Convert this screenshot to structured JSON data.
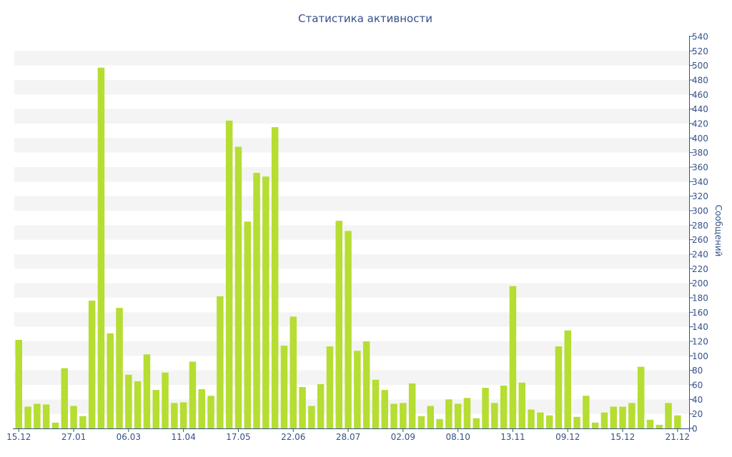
{
  "chart_data": {
    "type": "bar",
    "title": "Статистика активности",
    "xlabel": "",
    "ylabel": "Сообщений",
    "ylim": [
      0,
      540
    ],
    "y_ticks": [
      0,
      20,
      40,
      60,
      80,
      100,
      120,
      140,
      160,
      180,
      200,
      220,
      240,
      260,
      280,
      300,
      320,
      340,
      360,
      380,
      400,
      420,
      440,
      460,
      480,
      500,
      520,
      540
    ],
    "x_tick_labels": [
      "15.12",
      "27.01",
      "06.03",
      "11.04",
      "17.05",
      "22.06",
      "28.07",
      "02.09",
      "08.10",
      "13.11",
      "09.12",
      "15.12",
      "21.12"
    ],
    "x_tick_positions": [
      0,
      6,
      12,
      18,
      24,
      30,
      36,
      42,
      48,
      54,
      60,
      66,
      72
    ],
    "values": [
      122,
      30,
      34,
      33,
      8,
      83,
      31,
      17,
      176,
      497,
      131,
      166,
      74,
      65,
      102,
      53,
      77,
      35,
      36,
      92,
      54,
      45,
      182,
      424,
      388,
      285,
      352,
      347,
      415,
      114,
      154,
      57,
      31,
      61,
      113,
      286,
      272,
      107,
      120,
      67,
      53,
      34,
      35,
      62,
      17,
      31,
      13,
      40,
      34,
      42,
      14,
      56,
      35,
      59,
      196,
      63,
      26,
      22,
      18,
      113,
      135,
      16,
      45,
      8,
      22,
      30,
      30,
      35,
      85,
      12,
      5,
      35,
      18
    ],
    "bar_color": "#b6dd32",
    "axis_color": "#34508a",
    "band_color": "#f4f4f4",
    "grid": "alternating bands",
    "y_axis_side": "right"
  }
}
